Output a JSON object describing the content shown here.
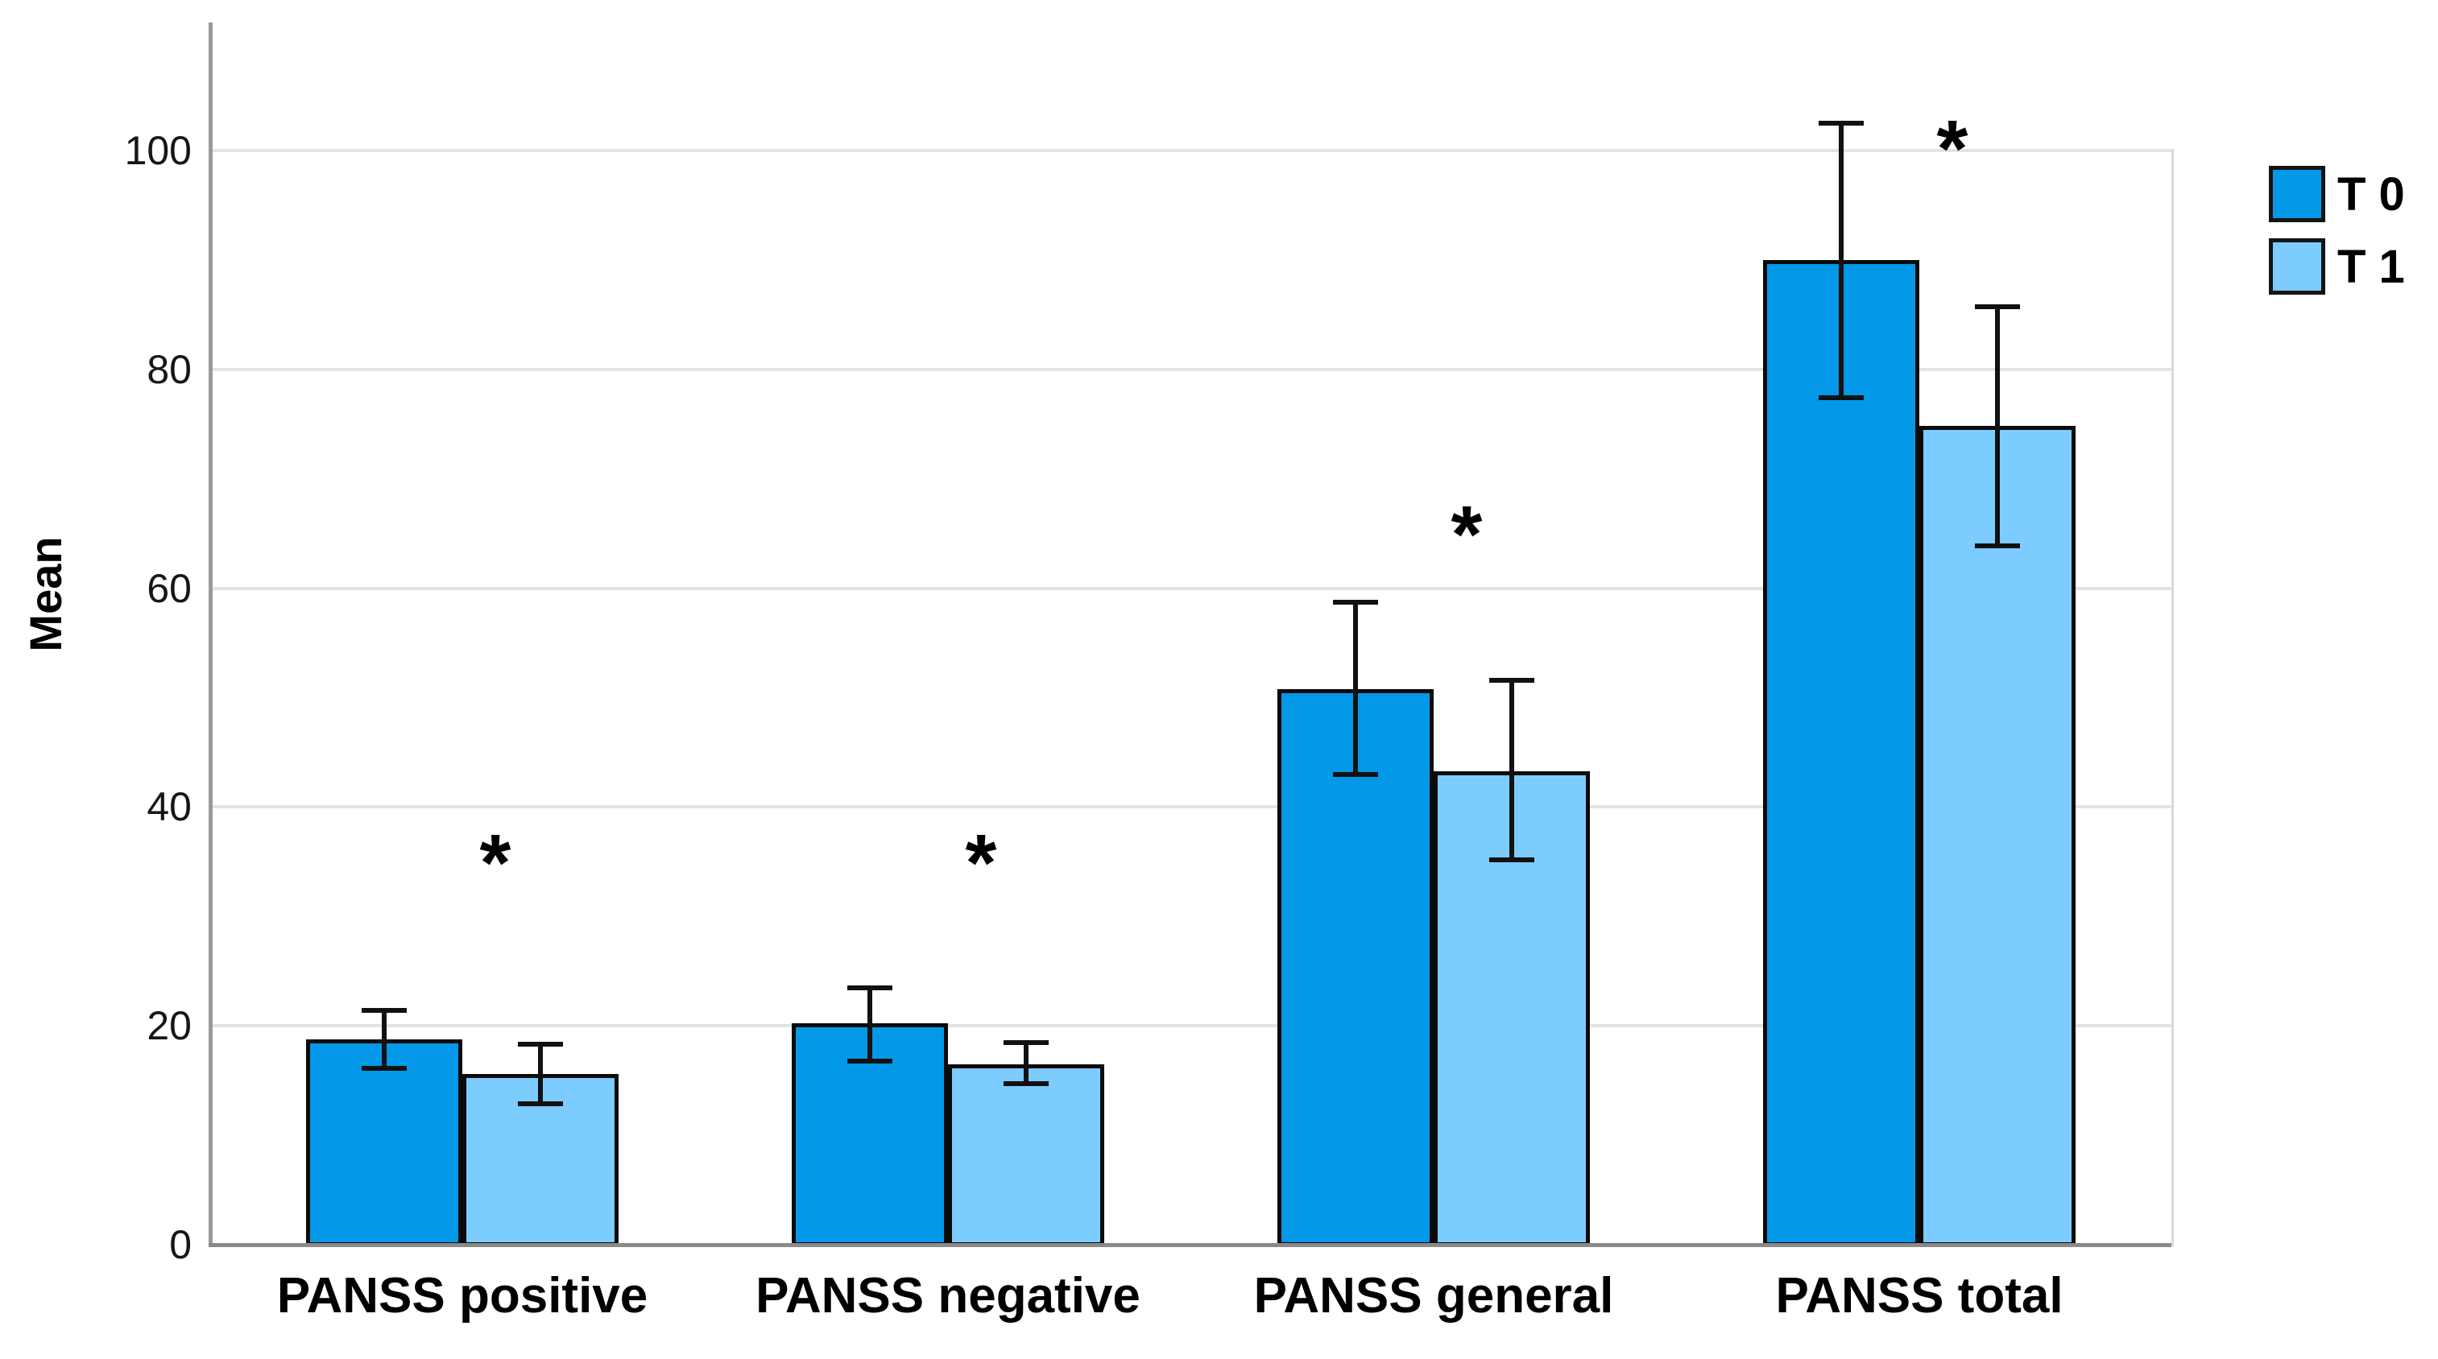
{
  "figure": {
    "background": "#ffffff",
    "text_color": "#000000"
  },
  "chart_data": {
    "type": "bar",
    "title": "",
    "xlabel": "",
    "ylabel": "Mean",
    "categories": [
      "PANSS positive",
      "PANSS negative",
      "PANSS general",
      "PANSS total"
    ],
    "series": [
      {
        "name": "T 0",
        "color": "#0398E8",
        "values": [
          18.8,
          20.2,
          50.8,
          90.0
        ],
        "error_low": [
          16.1,
          16.8,
          43.0,
          77.4
        ],
        "error_high": [
          21.4,
          23.5,
          58.7,
          102.5
        ]
      },
      {
        "name": "T 1",
        "color": "#7CCCFF",
        "values": [
          15.6,
          16.5,
          43.3,
          74.8
        ],
        "error_low": [
          12.9,
          14.7,
          35.2,
          63.9
        ],
        "error_high": [
          18.3,
          18.5,
          51.6,
          85.7
        ]
      }
    ],
    "ylim": [
      0,
      111
    ],
    "yticks": [
      0,
      20,
      40,
      60,
      80,
      100
    ],
    "grid": "horizontal",
    "legend_position": "top-right",
    "significance_markers": [
      {
        "category_index": 0,
        "symbol": "*",
        "y": 38.4
      },
      {
        "category_index": 1,
        "symbol": "*",
        "y": 38.4
      },
      {
        "category_index": 2,
        "symbol": "*",
        "y": 68.4
      },
      {
        "category_index": 3,
        "symbol": "*",
        "y": 103.7
      }
    ],
    "colors": {
      "bar_border": "#0a0a0a",
      "error_bar": "#111111",
      "gridline": "#e3e3e3",
      "baseline": "#8a8a8a",
      "y_axis_line": "#9a9a9a"
    }
  }
}
